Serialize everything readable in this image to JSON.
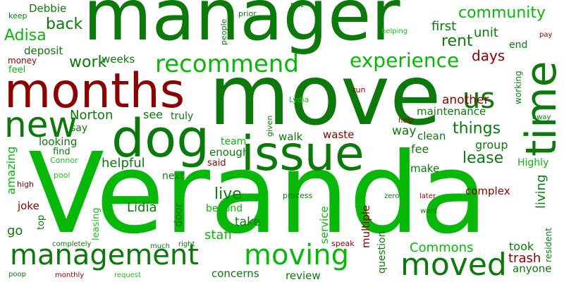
{
  "words": {
    "veranda": "Veranda",
    "manager": "manager",
    "move": "move",
    "months": "months",
    "dog": "dog",
    "issue": "issue",
    "time": "time",
    "new": "new",
    "management": "management",
    "moving": "moving",
    "moved": "moved",
    "recommend": "recommend",
    "experience": "experience",
    "us": "us",
    "community": "community",
    "back": "back",
    "adisa": "Adisa",
    "debbie": "Debbie",
    "keep": "keep",
    "put": "put",
    "prior": "prior",
    "people": "people",
    "first": "first",
    "unit": "unit",
    "rent": "rent",
    "helping": "helping",
    "pay": "pay",
    "end": "end",
    "days": "days",
    "deposit": "deposit",
    "work": "work",
    "weeks": "weeks",
    "money": "money",
    "feel": "feel",
    "norton": "Norton",
    "see": "see",
    "say": "say",
    "truly": "truly",
    "run": "run",
    "lydia": "Lydia",
    "another": "another",
    "maintenance": "maintenance",
    "working": "working",
    "away": "away",
    "things": "things",
    "help": "help",
    "given": "given",
    "waste": "waste",
    "way": "way",
    "looking": "looking",
    "find": "find",
    "team": "team",
    "walk": "walk",
    "clean": "clean",
    "fee": "fee",
    "group": "group",
    "lease": "lease",
    "amazing": "amazing",
    "connor": "Connor",
    "enough": "enough",
    "helpful": "helpful",
    "said": "said",
    "make": "make",
    "highly": "Highly",
    "pool": "pool",
    "next": "next",
    "living": "living",
    "high": "high",
    "live": "live",
    "process": "process",
    "zero": "zero",
    "complex": "complex",
    "later": "later",
    "joke": "joke",
    "lidia": "Lidia",
    "leasing": "leasing",
    "beyond": "beyond",
    "door": "door",
    "want": "want",
    "top": "top",
    "take": "take",
    "service": "service",
    "multiple": "multiple",
    "go": "go",
    "staff": "staff",
    "resident": "resident",
    "question": "question",
    "took": "took",
    "speak": "speak",
    "completely": "completely",
    "commons": "Commons",
    "much": "much",
    "right": "right",
    "trash": "trash",
    "anyone": "anyone",
    "poop": "poop",
    "monthly": "monthly",
    "request": "request",
    "concerns": "concerns",
    "review": "review"
  }
}
